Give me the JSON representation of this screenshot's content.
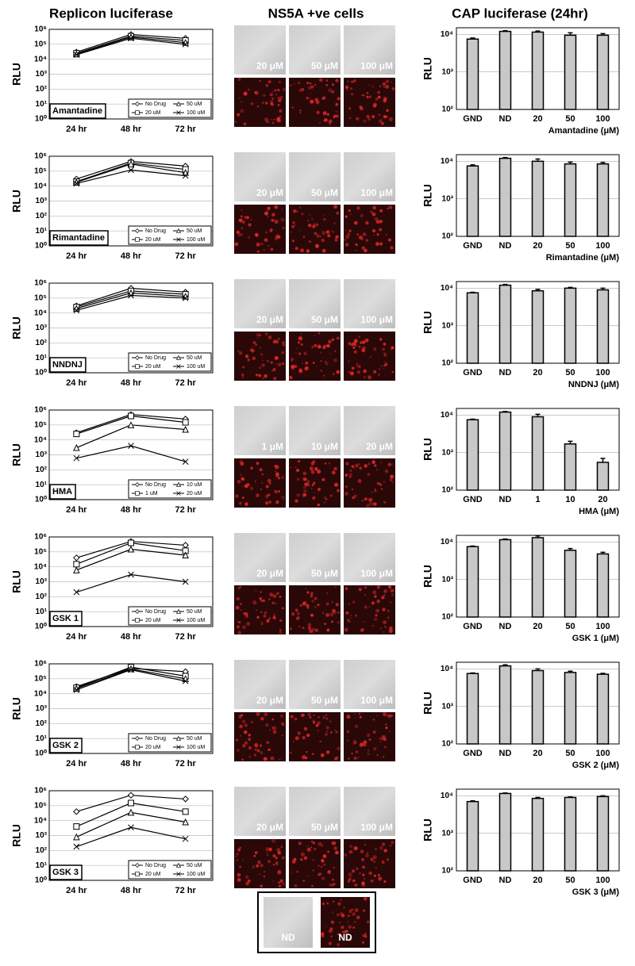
{
  "column_titles": [
    "Replicon luciferase",
    "NS5A +ve cells",
    "CAP luciferase (24hr)"
  ],
  "chart_data": [
    {
      "type": "line",
      "annotation": "Amantadine",
      "y_label": "RLU",
      "categories": [
        "24 hr",
        "48 hr",
        "72 hr"
      ],
      "series": [
        {
          "name": "No Drug",
          "color": "#000000",
          "marker": "diamond",
          "values": [
            30000,
            450000,
            250000
          ]
        },
        {
          "name": "20 uM",
          "color": "#000000",
          "marker": "square",
          "values": [
            25000,
            350000,
            180000
          ]
        },
        {
          "name": "50 uM",
          "color": "#000000",
          "marker": "triangle",
          "values": [
            22000,
            300000,
            130000
          ]
        },
        {
          "name": "100 uM",
          "color": "#000000",
          "marker": "x",
          "values": [
            20000,
            250000,
            100000
          ]
        }
      ],
      "ylim": [
        1,
        1000000
      ],
      "yticks": [
        {
          "value": 1,
          "label": "10⁰"
        },
        {
          "value": 10,
          "label": "10¹"
        },
        {
          "value": 100,
          "label": "10²"
        },
        {
          "value": 1000,
          "label": "10³"
        },
        {
          "value": 10000,
          "label": "10⁴"
        },
        {
          "value": 100000,
          "label": "10⁵"
        },
        {
          "value": 1000000,
          "label": "10⁶"
        }
      ],
      "log": true,
      "grid": true,
      "legend": "lower right"
    },
    {
      "type": "bar",
      "x_label": "Amantadine (μM)",
      "y_label": "RLU",
      "categories": [
        "GND",
        "ND",
        "20",
        "50",
        "100"
      ],
      "values": [
        7500,
        12000,
        11500,
        9500,
        9500
      ],
      "errors": [
        500,
        600,
        800,
        1500,
        1000
      ],
      "color": "#c8c8c8",
      "ylim": [
        100,
        15000
      ],
      "yticks": [
        {
          "value": 100,
          "label": "10²"
        },
        {
          "value": 1000,
          "label": "10³"
        },
        {
          "value": 10000,
          "label": "10⁴"
        }
      ],
      "log": true,
      "grid": true
    },
    {
      "type": "line",
      "annotation": "Rimantadine",
      "y_label": "RLU",
      "categories": [
        "24 hr",
        "48 hr",
        "72 hr"
      ],
      "series": [
        {
          "name": "No Drug",
          "color": "#000000",
          "marker": "diamond",
          "values": [
            30000,
            450000,
            220000
          ]
        },
        {
          "name": "20 uM",
          "color": "#000000",
          "marker": "square",
          "values": [
            20000,
            350000,
            130000
          ]
        },
        {
          "name": "50 uM",
          "color": "#000000",
          "marker": "triangle",
          "values": [
            18000,
            300000,
            80000
          ]
        },
        {
          "name": "100 uM",
          "color": "#000000",
          "marker": "x",
          "values": [
            15000,
            120000,
            50000
          ]
        }
      ],
      "ylim": [
        1,
        1000000
      ],
      "yticks": [
        {
          "value": 1,
          "label": "10⁰"
        },
        {
          "value": 10,
          "label": "10¹"
        },
        {
          "value": 100,
          "label": "10²"
        },
        {
          "value": 1000,
          "label": "10³"
        },
        {
          "value": 10000,
          "label": "10⁴"
        },
        {
          "value": 100000,
          "label": "10⁵"
        },
        {
          "value": 1000000,
          "label": "10⁶"
        }
      ],
      "log": true,
      "grid": true,
      "legend": "lower right"
    },
    {
      "type": "bar",
      "x_label": "Rimantadine (μM)",
      "y_label": "RLU",
      "categories": [
        "GND",
        "ND",
        "20",
        "50",
        "100"
      ],
      "values": [
        7500,
        12000,
        10000,
        8500,
        8500
      ],
      "errors": [
        500,
        600,
        1500,
        1000,
        800
      ],
      "color": "#c8c8c8",
      "ylim": [
        100,
        15000
      ],
      "yticks": [
        {
          "value": 100,
          "label": "10²"
        },
        {
          "value": 1000,
          "label": "10³"
        },
        {
          "value": 10000,
          "label": "10⁴"
        }
      ],
      "log": true,
      "grid": true
    },
    {
      "type": "line",
      "annotation": "NNDNJ",
      "y_label": "RLU",
      "categories": [
        "24 hr",
        "48 hr",
        "72 hr"
      ],
      "series": [
        {
          "name": "No Drug",
          "color": "#000000",
          "marker": "diamond",
          "values": [
            30000,
            450000,
            250000
          ]
        },
        {
          "name": "20 uM",
          "color": "#000000",
          "marker": "square",
          "values": [
            25000,
            300000,
            180000
          ]
        },
        {
          "name": "50 uM",
          "color": "#000000",
          "marker": "triangle",
          "values": [
            20000,
            220000,
            130000
          ]
        },
        {
          "name": "100 uM",
          "color": "#000000",
          "marker": "x",
          "values": [
            15000,
            150000,
            100000
          ]
        }
      ],
      "ylim": [
        1,
        1000000
      ],
      "yticks": [
        {
          "value": 1,
          "label": "10⁰"
        },
        {
          "value": 10,
          "label": "10¹"
        },
        {
          "value": 100,
          "label": "10²"
        },
        {
          "value": 1000,
          "label": "10³"
        },
        {
          "value": 10000,
          "label": "10⁴"
        },
        {
          "value": 100000,
          "label": "10⁵"
        },
        {
          "value": 1000000,
          "label": "10⁶"
        }
      ],
      "log": true,
      "grid": true,
      "legend": "lower right"
    },
    {
      "type": "bar",
      "x_label": "NNDNJ (μM)",
      "y_label": "RLU",
      "categories": [
        "GND",
        "ND",
        "20",
        "50",
        "100"
      ],
      "values": [
        7500,
        12000,
        8500,
        10000,
        9000
      ],
      "errors": [
        300,
        600,
        800,
        500,
        1000
      ],
      "color": "#c8c8c8",
      "ylim": [
        100,
        15000
      ],
      "yticks": [
        {
          "value": 100,
          "label": "10²"
        },
        {
          "value": 1000,
          "label": "10³"
        },
        {
          "value": 10000,
          "label": "10⁴"
        }
      ],
      "log": true,
      "grid": true
    },
    {
      "type": "line",
      "annotation": "HMA",
      "y_label": "RLU",
      "categories": [
        "24 hr",
        "48 hr",
        "72 hr"
      ],
      "series": [
        {
          "name": "No Drug",
          "color": "#000000",
          "marker": "diamond",
          "values": [
            30000,
            500000,
            250000
          ]
        },
        {
          "name": "1 uM",
          "color": "#000000",
          "marker": "square",
          "values": [
            25000,
            400000,
            150000
          ]
        },
        {
          "name": "10 uM",
          "color": "#000000",
          "marker": "triangle",
          "values": [
            3000,
            100000,
            50000
          ]
        },
        {
          "name": "20 uM",
          "color": "#000000",
          "marker": "x",
          "values": [
            600,
            4000,
            350
          ]
        }
      ],
      "ylim": [
        1,
        1000000
      ],
      "yticks": [
        {
          "value": 1,
          "label": "10⁰"
        },
        {
          "value": 10,
          "label": "10¹"
        },
        {
          "value": 100,
          "label": "10²"
        },
        {
          "value": 1000,
          "label": "10³"
        },
        {
          "value": 10000,
          "label": "10⁴"
        },
        {
          "value": 100000,
          "label": "10⁵"
        },
        {
          "value": 1000000,
          "label": "10⁶"
        }
      ],
      "log": true,
      "grid": true,
      "legend": "lower right"
    },
    {
      "type": "bar",
      "x_label": "HMA (μM)",
      "y_label": "RLU",
      "categories": [
        "GND",
        "ND",
        "1",
        "10",
        "20"
      ],
      "values": [
        7500,
        12000,
        9000,
        1700,
        550
      ],
      "errors": [
        300,
        500,
        1500,
        300,
        150
      ],
      "color": "#c8c8c8",
      "ylim": [
        100,
        15000
      ],
      "yticks": [
        {
          "value": 100,
          "label": "10²"
        },
        {
          "value": 1000,
          "label": "10³"
        },
        {
          "value": 10000,
          "label": "10⁴"
        }
      ],
      "log": true,
      "grid": true
    },
    {
      "type": "line",
      "annotation": "GSK 1",
      "y_label": "RLU",
      "categories": [
        "24 hr",
        "48 hr",
        "72 hr"
      ],
      "series": [
        {
          "name": "No Drug",
          "color": "#000000",
          "marker": "diamond",
          "values": [
            40000,
            500000,
            280000
          ]
        },
        {
          "name": "20 uM",
          "color": "#000000",
          "marker": "square",
          "values": [
            15000,
            400000,
            120000
          ]
        },
        {
          "name": "50 uM",
          "color": "#000000",
          "marker": "triangle",
          "values": [
            6000,
            150000,
            60000
          ]
        },
        {
          "name": "100 uM",
          "color": "#000000",
          "marker": "x",
          "values": [
            200,
            3000,
            1000
          ]
        }
      ],
      "ylim": [
        1,
        1000000
      ],
      "yticks": [
        {
          "value": 1,
          "label": "10⁰"
        },
        {
          "value": 10,
          "label": "10¹"
        },
        {
          "value": 100,
          "label": "10²"
        },
        {
          "value": 1000,
          "label": "10³"
        },
        {
          "value": 10000,
          "label": "10⁴"
        },
        {
          "value": 100000,
          "label": "10⁵"
        },
        {
          "value": 1000000,
          "label": "10⁶"
        }
      ],
      "log": true,
      "grid": true,
      "legend": "lower right"
    },
    {
      "type": "bar",
      "x_label": "GSK 1 (μM)",
      "y_label": "RLU",
      "categories": [
        "GND",
        "ND",
        "20",
        "50",
        "100"
      ],
      "values": [
        7500,
        11500,
        13000,
        6000,
        4800
      ],
      "errors": [
        300,
        500,
        1500,
        700,
        500
      ],
      "color": "#c8c8c8",
      "ylim": [
        100,
        15000
      ],
      "yticks": [
        {
          "value": 100,
          "label": "10²"
        },
        {
          "value": 1000,
          "label": "10³"
        },
        {
          "value": 10000,
          "label": "10⁴"
        }
      ],
      "log": true,
      "grid": true
    },
    {
      "type": "line",
      "annotation": "GSK 2",
      "y_label": "RLU",
      "categories": [
        "24 hr",
        "48 hr",
        "72 hr"
      ],
      "series": [
        {
          "name": "No Drug",
          "color": "#000000",
          "marker": "diamond",
          "values": [
            30000,
            500000,
            300000
          ]
        },
        {
          "name": "20 uM",
          "color": "#000000",
          "marker": "square",
          "values": [
            25000,
            600000,
            150000
          ]
        },
        {
          "name": "50 uM",
          "color": "#000000",
          "marker": "triangle",
          "values": [
            22000,
            450000,
            100000
          ]
        },
        {
          "name": "100 uM",
          "color": "#000000",
          "marker": "x",
          "values": [
            18000,
            400000,
            70000
          ]
        }
      ],
      "ylim": [
        1,
        1000000
      ],
      "yticks": [
        {
          "value": 1,
          "label": "10⁰"
        },
        {
          "value": 10,
          "label": "10¹"
        },
        {
          "value": 100,
          "label": "10²"
        },
        {
          "value": 1000,
          "label": "10³"
        },
        {
          "value": 10000,
          "label": "10⁴"
        },
        {
          "value": 100000,
          "label": "10⁵"
        },
        {
          "value": 1000000,
          "label": "10⁶"
        }
      ],
      "log": true,
      "grid": true,
      "legend": "lower right"
    },
    {
      "type": "bar",
      "x_label": "GSK 2 (μM)",
      "y_label": "RLU",
      "categories": [
        "GND",
        "ND",
        "20",
        "50",
        "100"
      ],
      "values": [
        7500,
        12000,
        9000,
        8000,
        7200
      ],
      "errors": [
        300,
        800,
        1000,
        700,
        400
      ],
      "color": "#c8c8c8",
      "ylim": [
        100,
        15000
      ],
      "yticks": [
        {
          "value": 100,
          "label": "10²"
        },
        {
          "value": 1000,
          "label": "10³"
        },
        {
          "value": 10000,
          "label": "10⁴"
        }
      ],
      "log": true,
      "grid": true
    },
    {
      "type": "line",
      "annotation": "GSK 3",
      "y_label": "RLU",
      "categories": [
        "24 hr",
        "48 hr",
        "72 hr"
      ],
      "series": [
        {
          "name": "No Drug",
          "color": "#000000",
          "marker": "diamond",
          "values": [
            40000,
            500000,
            280000
          ]
        },
        {
          "name": "20 uM",
          "color": "#000000",
          "marker": "square",
          "values": [
            4000,
            150000,
            40000
          ]
        },
        {
          "name": "50 uM",
          "color": "#000000",
          "marker": "triangle",
          "values": [
            800,
            35000,
            8000
          ]
        },
        {
          "name": "100 uM",
          "color": "#000000",
          "marker": "x",
          "values": [
            180,
            3500,
            600
          ]
        }
      ],
      "ylim": [
        1,
        1000000
      ],
      "yticks": [
        {
          "value": 1,
          "label": "10⁰"
        },
        {
          "value": 10,
          "label": "10¹"
        },
        {
          "value": 100,
          "label": "10²"
        },
        {
          "value": 1000,
          "label": "10³"
        },
        {
          "value": 10000,
          "label": "10⁴"
        },
        {
          "value": 100000,
          "label": "10⁵"
        },
        {
          "value": 1000000,
          "label": "10⁶"
        }
      ],
      "log": true,
      "grid": true,
      "legend": "lower right"
    },
    {
      "type": "bar",
      "x_label": "GSK 3 (μM)",
      "y_label": "RLU",
      "categories": [
        "GND",
        "ND",
        "20",
        "50",
        "100"
      ],
      "values": [
        7000,
        11500,
        8500,
        9000,
        9500
      ],
      "errors": [
        300,
        300,
        500,
        300,
        500
      ],
      "color": "#c8c8c8",
      "ylim": [
        100,
        15000
      ],
      "yticks": [
        {
          "value": 100,
          "label": "10²"
        },
        {
          "value": 1000,
          "label": "10³"
        },
        {
          "value": 10000,
          "label": "10⁴"
        }
      ],
      "log": true,
      "grid": true
    }
  ],
  "micrographs": [
    {
      "labels": [
        "20 μM",
        "50 μM",
        "100 μM"
      ]
    },
    {
      "labels": [
        "20 μM",
        "50 μM",
        "100 μM"
      ]
    },
    {
      "labels": [
        "20 μM",
        "50 μM",
        "100 μM"
      ]
    },
    {
      "labels": [
        "1 μM",
        "10 μM",
        "20 μM"
      ]
    },
    {
      "labels": [
        "20 μM",
        "50 μM",
        "100 μM"
      ]
    },
    {
      "labels": [
        "20 μM",
        "50 μM",
        "100 μM"
      ]
    },
    {
      "labels": [
        "20 μM",
        "50 μM",
        "100 μM"
      ]
    }
  ],
  "inset": {
    "labels": [
      "ND",
      "ND"
    ]
  }
}
